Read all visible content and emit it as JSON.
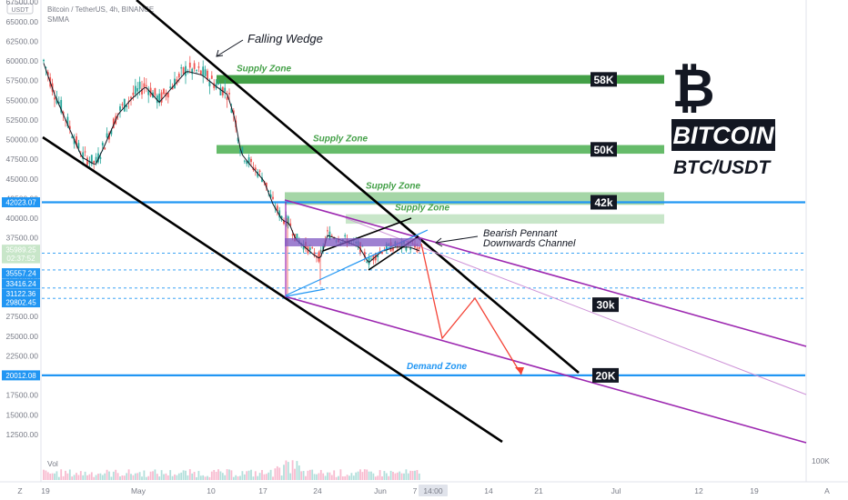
{
  "header": {
    "title": "Bitcoin / TetherUS, 4h, BINANCE",
    "indicator": "SMMA",
    "currency": "USDT"
  },
  "chart_data": {
    "type": "candlestick",
    "symbol": "BTCUSDT",
    "interval": "4h",
    "exchange": "BINANCE",
    "y_axis": {
      "scale": "linear",
      "ylim": [
        10000,
        67500
      ],
      "ticks": [
        67500,
        65000,
        62500,
        60000,
        57500,
        55000,
        52500,
        50000,
        47500,
        45000,
        42500,
        40000,
        37500,
        35000,
        32500,
        30000,
        27500,
        25000,
        22500,
        20000,
        17500,
        15000,
        12500
      ],
      "tick_labels": [
        "67500.00",
        "65000.00",
        "62500.00",
        "60000.00",
        "57500.00",
        "55000.00",
        "52500.00",
        "50000.00",
        "47500.00",
        "45000.00",
        "42500.00",
        "40000.00",
        "37500.00",
        "35000.00",
        "32500.00",
        "30000.00",
        "27500.00",
        "25000.00",
        "22500.00",
        "20000.00",
        "17500.00",
        "15000.00",
        "12500.00"
      ]
    },
    "x_axis": {
      "tick_labels": [
        "19",
        "May",
        "10",
        "17",
        "24",
        "Jun",
        "7",
        "14:00",
        "14",
        "21",
        "Jul",
        "12",
        "19"
      ],
      "corner_label": "Z",
      "auto_label": "A"
    },
    "price_tags": [
      {
        "label": "42023.07",
        "price": 42023.07,
        "color": "#2196f3"
      },
      {
        "label": "35989.25",
        "price": 35989.25,
        "color": "#c8e6c9",
        "text_color": "#131722"
      },
      {
        "label": "02:37:52",
        "price": 34900,
        "color": "#c8e6c9",
        "text_color": "#131722"
      },
      {
        "label": "35557.24",
        "price": 33000,
        "color": "#2196f3"
      },
      {
        "label": "33416.24",
        "price": 31700,
        "color": "#2196f3"
      },
      {
        "label": "31122.36",
        "price": 30400,
        "color": "#2196f3"
      },
      {
        "label": "29802.45",
        "price": 29300,
        "color": "#2196f3"
      },
      {
        "label": "20012.08",
        "price": 20012.08,
        "color": "#2196f3"
      }
    ],
    "horizontal_levels": [
      {
        "price": 42023.07,
        "color": "#2196f3",
        "style": "solid"
      },
      {
        "price": 20012.08,
        "color": "#2196f3",
        "style": "solid"
      },
      {
        "price": 33416.24,
        "color": "#2196f3",
        "style": "dashed"
      },
      {
        "price": 31122.36,
        "color": "#2196f3",
        "style": "dashed"
      },
      {
        "price": 35557.24,
        "color": "#2196f3",
        "style": "dashed"
      },
      {
        "price": 29802.45,
        "color": "#2196f3",
        "style": "dashed"
      }
    ],
    "zones": [
      {
        "label": "Supply Zone",
        "price_top": 58200,
        "price_bottom": 57100,
        "tag": "58K",
        "color": "#43a047"
      },
      {
        "label": "Supply Zone",
        "price_top": 49300,
        "price_bottom": 48200,
        "tag": "50K",
        "color": "#66bb6a"
      },
      {
        "label": "Supply Zone",
        "price_top": 43300,
        "price_bottom": 41700,
        "tag": "42k",
        "color": "#a5d6a7"
      },
      {
        "label": "Supply Zone",
        "price_top": 40500,
        "price_bottom": 39300,
        "tag": "",
        "color": "#c8e6c9"
      },
      {
        "label": "Demand Zone",
        "price_top": 20012.08,
        "price_bottom": 20012.08,
        "tag": "20K",
        "color": "#2196f3"
      }
    ],
    "tags": [
      "58K",
      "50K",
      "42k",
      "30k",
      "20K"
    ],
    "annotations": [
      "Falling Wedge",
      "Bearish Pennant",
      "Downwards Channel"
    ],
    "branding": {
      "word": "BITCOIN",
      "pair": "BTC/USDT",
      "symbol": "₿"
    },
    "volume_label": "Vol",
    "volume_scale_label": "100K"
  },
  "colors": {
    "up": "#26a69a",
    "down": "#ef5350",
    "wedge": "#000000",
    "channel": "#9c27b0",
    "projection": "#f44336",
    "level": "#2196f3"
  }
}
